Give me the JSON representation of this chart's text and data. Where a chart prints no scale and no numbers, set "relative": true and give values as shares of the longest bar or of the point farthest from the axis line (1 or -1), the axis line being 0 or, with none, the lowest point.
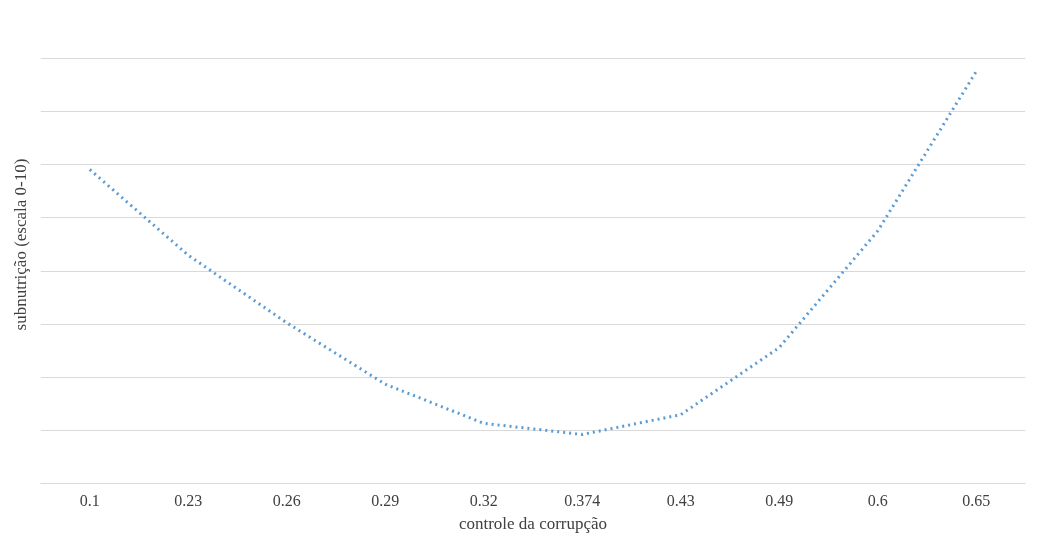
{
  "chart_data": {
    "type": "line",
    "xlabel": "controle da corrupção",
    "ylabel": "subnutrição (escala 0-10)",
    "categories": [
      "0.1",
      "0.23",
      "0.26",
      "0.29",
      "0.32",
      "0.374",
      "0.43",
      "0.49",
      "0.6",
      "0.65"
    ],
    "series": [
      {
        "color": "#5b9bd5",
        "values": [
          0.762,
          0.554,
          0.39,
          0.241,
          0.146,
          0.119,
          0.167,
          0.33,
          0.613,
          1
        ]
      }
    ],
    "relative": true,
    "grid": "y",
    "line_style": "dotted",
    "marker": "none"
  }
}
